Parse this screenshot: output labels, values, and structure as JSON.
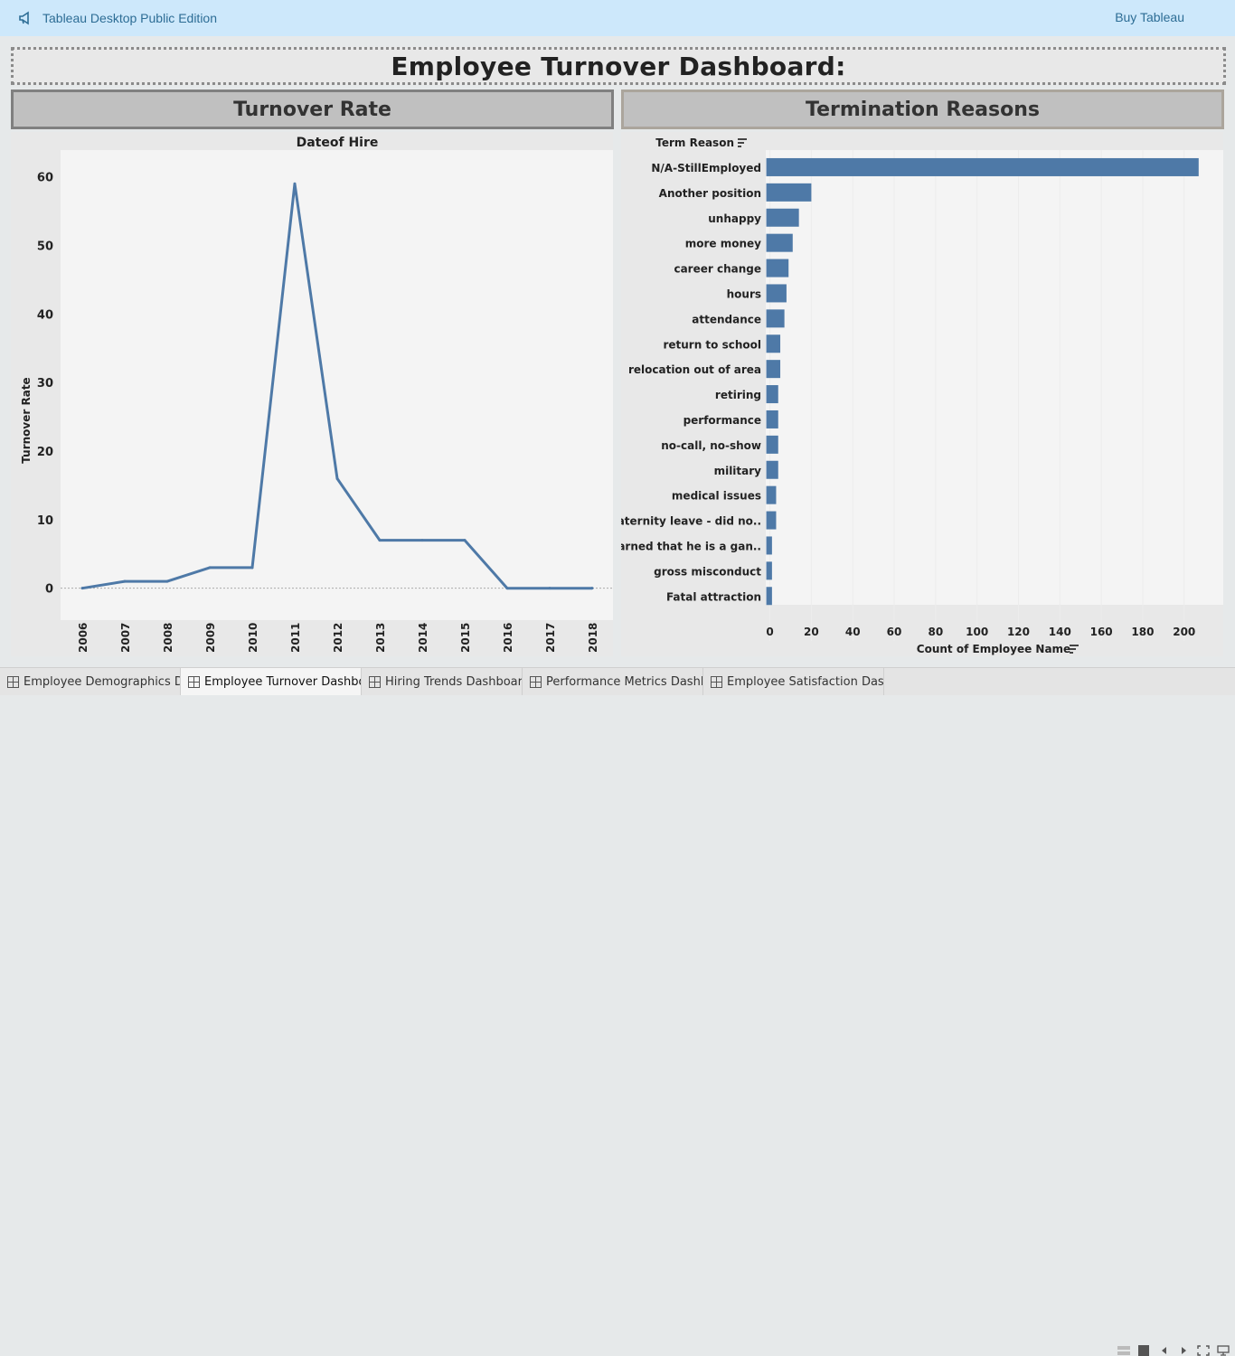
{
  "topbar": {
    "brand": "Tableau Desktop Public Edition",
    "buy": "Buy Tableau"
  },
  "dashboard": {
    "title": "Employee Turnover Dashboard:",
    "left_header": "Turnover Rate",
    "right_header": "Termination Reasons"
  },
  "chart_data": [
    {
      "type": "line",
      "title": "Dateof Hire",
      "xlabel": "",
      "ylabel": "Turnover Rate",
      "x": [
        "2006",
        "2007",
        "2008",
        "2009",
        "2010",
        "2011",
        "2012",
        "2013",
        "2014",
        "2015",
        "2016",
        "2017",
        "2018"
      ],
      "series": [
        {
          "values": [
            0,
            1,
            1,
            3,
            3,
            59,
            16,
            7,
            7,
            7,
            0,
            0,
            0
          ]
        }
      ],
      "ylim": [
        -4,
        63
      ],
      "yticks": [
        "60",
        "50",
        "40",
        "30",
        "20",
        "10",
        "0"
      ],
      "color": "#4e79a7",
      "grid": false
    },
    {
      "type": "bar",
      "orientation": "horizontal",
      "category_header": "Term Reason",
      "xlabel": "Count of Employee Name",
      "categories": [
        "N/A-StillEmployed",
        "Another position",
        "unhappy",
        "more money",
        "career change",
        "hours",
        "attendance",
        "return to school",
        "relocation out of area",
        "retiring",
        "performance",
        "no-call, no-show",
        "military",
        "medical issues",
        "maternity leave - did no..",
        "Learned that he is a gan..",
        "gross misconduct",
        "Fatal attraction"
      ],
      "values": [
        207,
        20,
        14,
        11,
        9,
        8,
        7,
        5,
        5,
        4,
        4,
        4,
        4,
        3,
        3,
        1,
        1,
        1
      ],
      "xticks": [
        "0",
        "20",
        "40",
        "60",
        "80",
        "100",
        "120",
        "140",
        "160",
        "180",
        "200"
      ],
      "xlim": [
        -2,
        218
      ],
      "color": "#4e79a7"
    }
  ],
  "tabs": [
    {
      "label": "Employee Demographics Da..."
    },
    {
      "label": "Employee Turnover Dashbo..."
    },
    {
      "label": "Hiring Trends Dashboard:"
    },
    {
      "label": "Performance Metrics Dashb..."
    },
    {
      "label": "Employee Satisfaction Dash..."
    }
  ]
}
